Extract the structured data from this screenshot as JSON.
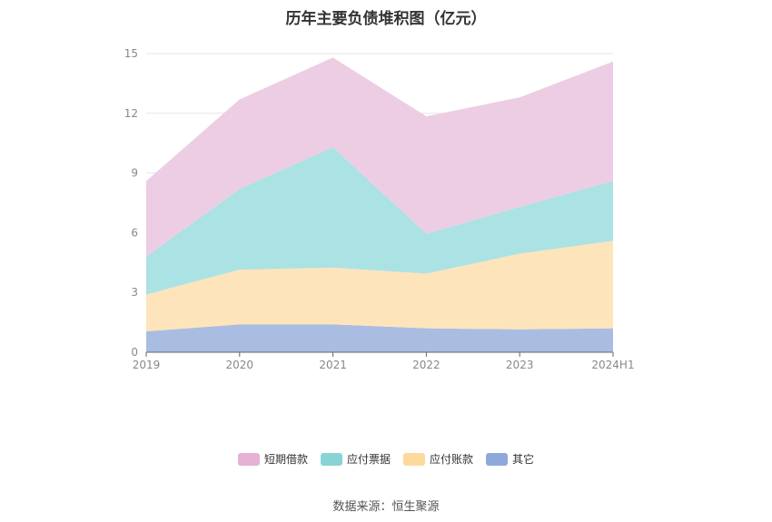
{
  "title": "历年主要负债堆积图（亿元）",
  "source": "数据来源：恒生聚源",
  "chart_data": {
    "type": "area",
    "stacked": true,
    "categories": [
      "2019",
      "2020",
      "2021",
      "2022",
      "2023",
      "2024H1"
    ],
    "ylim": [
      0,
      15
    ],
    "yticks": [
      0,
      3,
      6,
      9,
      12,
      15
    ],
    "grid": true,
    "legend_position": "bottom",
    "series": [
      {
        "name": "其它",
        "color": "#a9bde3",
        "legend_color": "#8fa8dc",
        "values": [
          1.05,
          1.4,
          1.4,
          1.2,
          1.15,
          1.2
        ]
      },
      {
        "name": "应付账款",
        "color": "#fde4bb",
        "legend_color": "#fcd99c",
        "values": [
          1.85,
          2.75,
          2.85,
          2.75,
          3.8,
          4.4
        ]
      },
      {
        "name": "应付票据",
        "color": "#abe2e3",
        "legend_color": "#87d4d6",
        "values": [
          1.9,
          4.05,
          6.05,
          2.0,
          2.35,
          3.0
        ]
      },
      {
        "name": "短期借款",
        "color": "#edcde3",
        "legend_color": "#e5b2d5",
        "values": [
          3.8,
          4.5,
          4.5,
          5.9,
          5.5,
          6.0
        ]
      }
    ]
  }
}
